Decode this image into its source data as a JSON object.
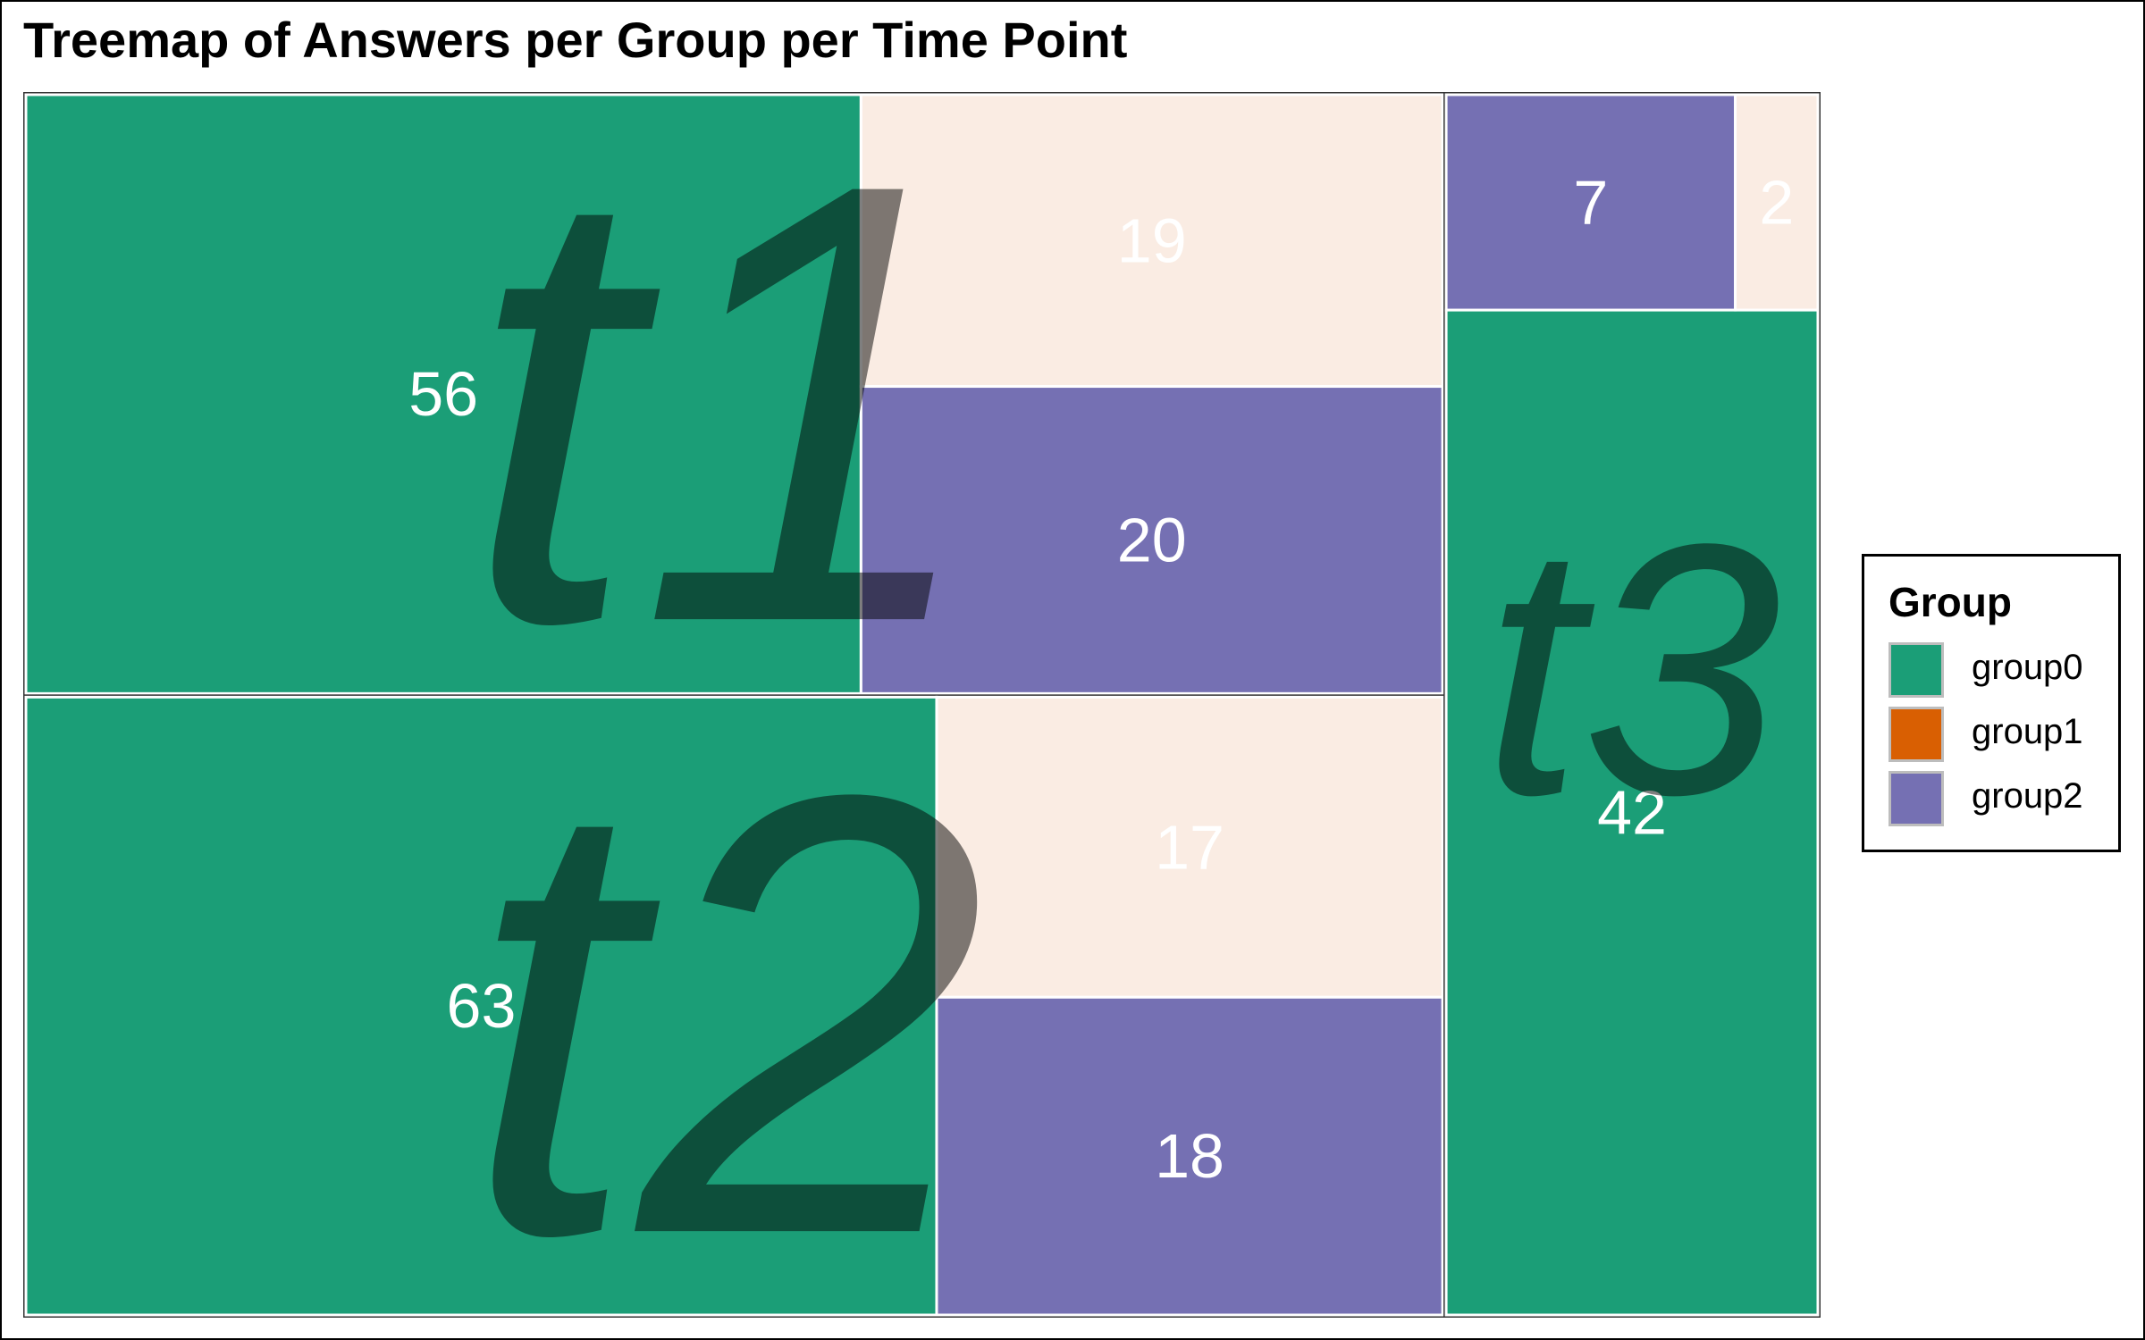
{
  "title": "Treemap of Answers per Group per Time Point",
  "legend": {
    "title": "Group",
    "items": [
      {
        "label": "group0",
        "color": "#1b9e77"
      },
      {
        "label": "group1",
        "color": "#d95f02"
      },
      {
        "label": "group2",
        "color": "#7570b3"
      }
    ]
  },
  "chart_data": {
    "type": "treemap",
    "title": "Treemap of Answers per Group per Time Point",
    "legend_title": "Group",
    "legend_position": "right",
    "colors": {
      "group0": "#1b9e77",
      "group1": "#d95f02",
      "group2": "#7570b3"
    },
    "groups": [
      {
        "name": "t1",
        "children": [
          {
            "group": "group0",
            "value": 56
          },
          {
            "group": "group1",
            "value": 19
          },
          {
            "group": "group2",
            "value": 20
          }
        ]
      },
      {
        "name": "t2",
        "children": [
          {
            "group": "group0",
            "value": 63
          },
          {
            "group": "group1",
            "value": 17
          },
          {
            "group": "group2",
            "value": 18
          }
        ]
      },
      {
        "name": "t3",
        "children": [
          {
            "group": "group0",
            "value": 42
          },
          {
            "group": "group2",
            "value": 7
          },
          {
            "group": "group1",
            "value": 2
          }
        ]
      }
    ]
  }
}
